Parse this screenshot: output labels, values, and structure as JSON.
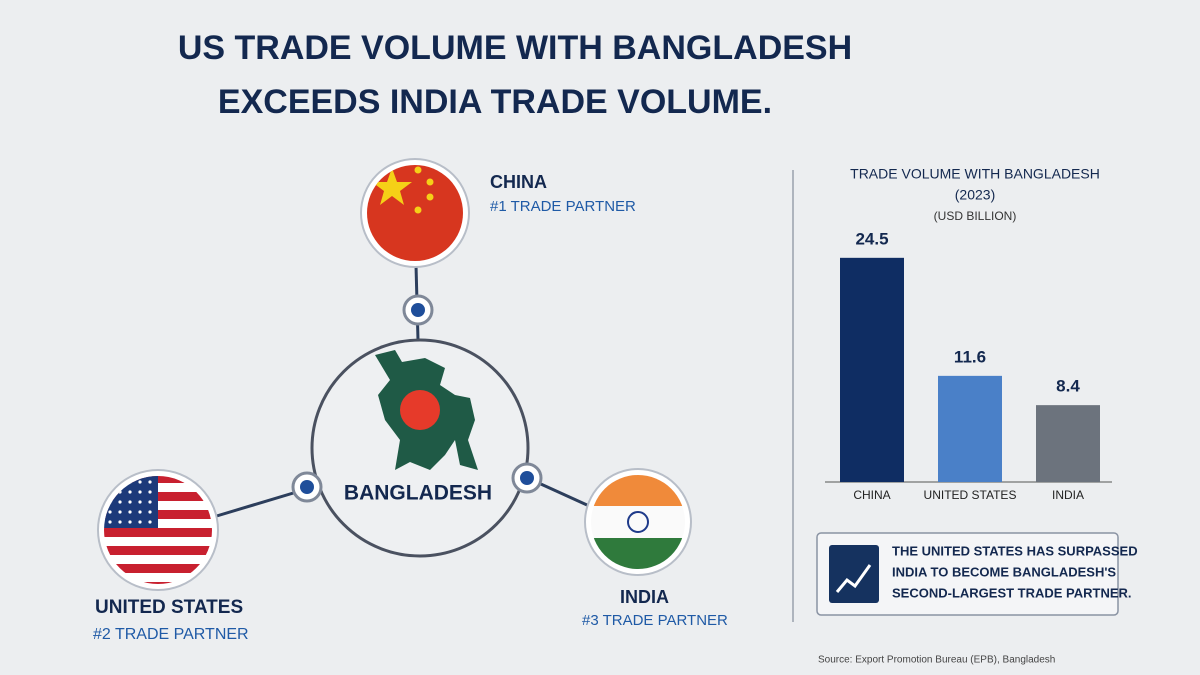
{
  "title": [
    "US TRADE VOLUME WITH BANGLADESH",
    "EXCEEDS INDIA TRADE VOLUME."
  ],
  "diagram": {
    "center": "BANGLADESH",
    "partners": [
      {
        "name": "CHINA",
        "rank": "#1 TRADE PARTNER"
      },
      {
        "name": "UNITED STATES",
        "rank": "#2 TRADE PARTNER"
      },
      {
        "name": "INDIA",
        "rank": "#3 TRADE PARTNER"
      }
    ]
  },
  "chart_data": {
    "type": "bar",
    "title": "TRADE VOLUME WITH BANGLADESH",
    "subtitle": "(2023)",
    "unit_label": "(USD BILLION)",
    "categories": [
      "CHINA",
      "UNITED STATES",
      "INDIA"
    ],
    "values": [
      24.5,
      11.6,
      8.4
    ],
    "colors": [
      "#0f2d63",
      "#4a80c8",
      "#6c737d"
    ]
  },
  "callout": [
    "THE UNITED STATES HAS SURPASSED",
    "INDIA TO BECOME BANGLADESH'S",
    "SECOND-LARGEST TRADE PARTNER."
  ],
  "source": "Source: Export Promotion Bureau (EPB), Bangladesh"
}
